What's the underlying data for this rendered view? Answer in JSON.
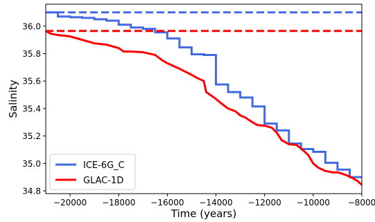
{
  "chart_data": {
    "type": "line",
    "title": "",
    "xlabel": "Time (years)",
    "ylabel": "Salinity",
    "xlim": [
      -21000,
      -8000
    ],
    "ylim": [
      34.78,
      36.16
    ],
    "xticks": [
      -20000,
      -18000,
      -16000,
      -14000,
      -12000,
      -10000,
      -8000
    ],
    "xtick_labels": [
      "−20000",
      "−18000",
      "−16000",
      "−14000",
      "−12000",
      "−10000",
      "−8000"
    ],
    "yticks": [
      34.8,
      35.0,
      35.2,
      35.4,
      35.6,
      35.8,
      36.0
    ],
    "ytick_labels": [
      "34.8",
      "35.0",
      "35.2",
      "35.4",
      "35.6",
      "35.8",
      "36.0"
    ],
    "grid": false,
    "legend_position": "lower-left",
    "series": [
      {
        "name": "ICE-6G_C",
        "color": "#4169e1",
        "style": "step",
        "reference_level": 36.1,
        "x": [
          -21000,
          -20500,
          -20000,
          -19500,
          -19000,
          -18500,
          -18000,
          -17500,
          -17000,
          -16500,
          -16000,
          -15500,
          -15000,
          -14500,
          -14000,
          -13500,
          -13000,
          -12500,
          -12000,
          -11500,
          -11000,
          -10500,
          -10000,
          -9500,
          -9000,
          -8500,
          -8000
        ],
        "values": [
          36.1,
          36.07,
          36.065,
          36.06,
          36.05,
          36.04,
          36.01,
          35.99,
          35.98,
          35.955,
          35.91,
          35.845,
          35.795,
          35.79,
          35.575,
          35.52,
          35.48,
          35.415,
          35.29,
          35.24,
          35.145,
          35.105,
          35.085,
          35.005,
          34.955,
          34.9,
          34.9
        ]
      },
      {
        "name": "GLAC-1D",
        "color": "#ff0000",
        "style": "line",
        "reference_level": 35.965,
        "x": [
          -21000,
          -20800,
          -20500,
          -20000,
          -19500,
          -19000,
          -18500,
          -18000,
          -17800,
          -17500,
          -17000,
          -16500,
          -16200,
          -16000,
          -15500,
          -15000,
          -14800,
          -14500,
          -14400,
          -14200,
          -14000,
          -13800,
          -13500,
          -13200,
          -13000,
          -12800,
          -12500,
          -12300,
          -12000,
          -11700,
          -11500,
          -11300,
          -11000,
          -10700,
          -10500,
          -10200,
          -10000,
          -9800,
          -9500,
          -9200,
          -9000,
          -8800,
          -8500,
          -8200,
          -8000
        ],
        "values": [
          35.965,
          35.945,
          35.935,
          35.925,
          35.9,
          35.875,
          35.865,
          35.84,
          35.815,
          35.815,
          35.81,
          35.79,
          35.75,
          35.73,
          35.69,
          35.645,
          35.625,
          35.6,
          35.52,
          35.495,
          35.47,
          35.44,
          35.4,
          35.38,
          35.35,
          35.335,
          35.3,
          35.28,
          35.275,
          35.26,
          35.225,
          35.17,
          35.14,
          35.135,
          35.11,
          35.06,
          35.0,
          34.97,
          34.945,
          34.935,
          34.935,
          34.925,
          34.905,
          34.875,
          34.845
        ]
      }
    ]
  }
}
